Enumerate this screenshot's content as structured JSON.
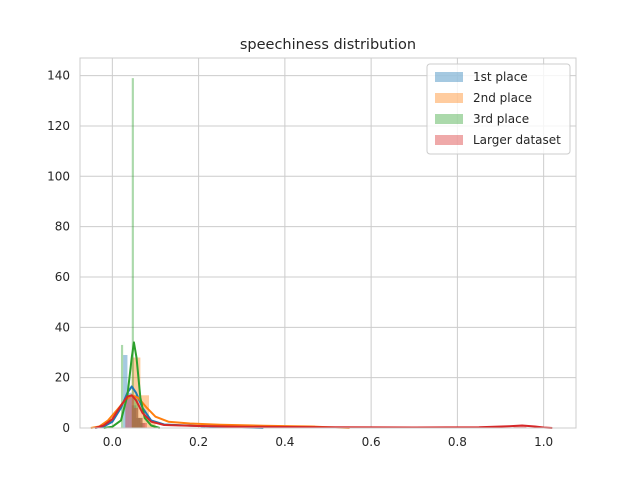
{
  "chart_data": {
    "type": "histogram_kde",
    "title": "speechiness distribution",
    "xlabel": "",
    "ylabel": "",
    "xlim": [
      -0.075,
      1.075
    ],
    "ylim": [
      0,
      147
    ],
    "x_ticks": [
      0.0,
      0.2,
      0.4,
      0.6,
      0.8,
      1.0
    ],
    "x_tick_labels": [
      "0.0",
      "0.2",
      "0.4",
      "0.6",
      "0.8",
      "1.0"
    ],
    "y_ticks": [
      0,
      20,
      40,
      60,
      80,
      100,
      120,
      140
    ],
    "y_tick_labels": [
      "0",
      "20",
      "40",
      "60",
      "80",
      "100",
      "120",
      "140"
    ],
    "grid": true,
    "legend_position": "top-right",
    "series": [
      {
        "name": "1st place",
        "color": "#1f77b4",
        "bars": [
          [
            0.025,
            0.035,
            29
          ],
          [
            0.035,
            0.045,
            14
          ],
          [
            0.045,
            0.055,
            9
          ],
          [
            0.055,
            0.065,
            4
          ],
          [
            0.065,
            0.075,
            2
          ],
          [
            0.205,
            0.215,
            1.5
          ],
          [
            0.225,
            0.235,
            1.5
          ]
        ],
        "kde": [
          [
            -0.04,
            0
          ],
          [
            -0.02,
            0.6
          ],
          [
            0.0,
            2.5
          ],
          [
            0.02,
            8
          ],
          [
            0.035,
            14
          ],
          [
            0.045,
            16.5
          ],
          [
            0.055,
            14
          ],
          [
            0.07,
            8
          ],
          [
            0.09,
            3
          ],
          [
            0.12,
            1.4
          ],
          [
            0.2,
            0.8
          ],
          [
            0.25,
            0.5
          ],
          [
            0.3,
            0.2
          ],
          [
            0.35,
            0
          ]
        ]
      },
      {
        "name": "2nd place",
        "color": "#ff7f0e",
        "bars": [
          [
            0.045,
            0.065,
            28
          ],
          [
            0.065,
            0.085,
            13
          ],
          [
            0.085,
            0.1,
            3
          ],
          [
            0.44,
            0.47,
            1
          ]
        ],
        "kde": [
          [
            -0.05,
            0
          ],
          [
            -0.03,
            0.6
          ],
          [
            -0.01,
            3
          ],
          [
            0.01,
            7
          ],
          [
            0.03,
            11
          ],
          [
            0.045,
            13
          ],
          [
            0.06,
            12
          ],
          [
            0.08,
            8
          ],
          [
            0.1,
            4.5
          ],
          [
            0.13,
            2.5
          ],
          [
            0.18,
            1.8
          ],
          [
            0.25,
            1.3
          ],
          [
            0.35,
            0.9
          ],
          [
            0.42,
            0.7
          ],
          [
            0.46,
            0.6
          ],
          [
            0.5,
            0.3
          ],
          [
            0.55,
            0
          ]
        ]
      },
      {
        "name": "3rd place",
        "color": "#2ca02c",
        "bars": [
          [
            0.02,
            0.025,
            33
          ],
          [
            0.045,
            0.05,
            139
          ],
          [
            0.05,
            0.06,
            13
          ],
          [
            0.06,
            0.07,
            4
          ]
        ],
        "kde": [
          [
            -0.02,
            0
          ],
          [
            0.0,
            0.5
          ],
          [
            0.02,
            3
          ],
          [
            0.035,
            13
          ],
          [
            0.045,
            28
          ],
          [
            0.05,
            34
          ],
          [
            0.056,
            28
          ],
          [
            0.065,
            12
          ],
          [
            0.075,
            4
          ],
          [
            0.09,
            1
          ],
          [
            0.11,
            0
          ]
        ]
      },
      {
        "name": "Larger dataset",
        "color": "#d62728",
        "bars": [
          [
            0.03,
            0.04,
            12
          ],
          [
            0.04,
            0.05,
            13
          ],
          [
            0.05,
            0.06,
            8
          ],
          [
            0.06,
            0.07,
            4
          ],
          [
            0.07,
            0.08,
            2
          ],
          [
            0.93,
            0.96,
            1
          ]
        ],
        "kde": [
          [
            -0.04,
            0
          ],
          [
            -0.02,
            1
          ],
          [
            0.0,
            3.5
          ],
          [
            0.02,
            9
          ],
          [
            0.035,
            12.5
          ],
          [
            0.045,
            13
          ],
          [
            0.055,
            11
          ],
          [
            0.07,
            6
          ],
          [
            0.09,
            2.5
          ],
          [
            0.12,
            1.2
          ],
          [
            0.2,
            0.8
          ],
          [
            0.3,
            0.5
          ],
          [
            0.5,
            0.3
          ],
          [
            0.7,
            0.2
          ],
          [
            0.85,
            0.3
          ],
          [
            0.92,
            0.7
          ],
          [
            0.95,
            1
          ],
          [
            0.98,
            0.6
          ],
          [
            1.0,
            0.2
          ],
          [
            1.02,
            0
          ]
        ]
      }
    ]
  }
}
